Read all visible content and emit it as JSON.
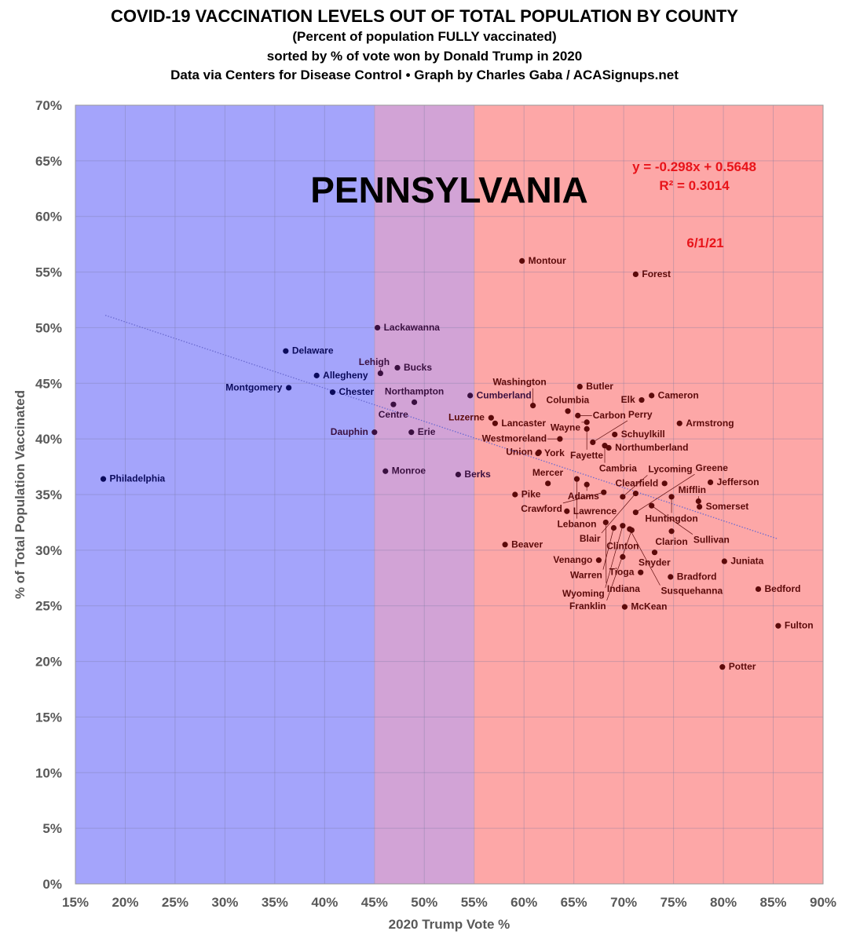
{
  "title": {
    "line1": "COVID-19 VACCINATION LEVELS OUT OF TOTAL POPULATION BY COUNTY",
    "line2": "(Percent of population FULLY vaccinated)",
    "line3": "sorted by % of vote won by Donald Trump in 2020",
    "line4": "Data via Centers for Disease Control • Graph by Charles Gaba / ACASignups.net"
  },
  "colors": {
    "blue_band": "#a4a4fb",
    "purple_band": "#d2a3d6",
    "red_band": "#fda7a7",
    "blue_dot": "#0b0b5c",
    "purple_dot": "#3a1040",
    "red_dot": "#5c0a0a",
    "annotation": "#e8141a"
  },
  "chart_data": {
    "type": "scatter",
    "state_label": "PENNSYLVANIA",
    "date_label": "6/1/21",
    "trendline": {
      "equation": "y = -0.298x + 0.5648",
      "r2": "R² = 0.3014",
      "slope": -0.298,
      "intercept": 0.5648,
      "x_range": [
        18,
        85.5
      ]
    },
    "xlabel": "2020 Trump Vote %",
    "ylabel": "% of Total Population Vaccinated",
    "xlim": [
      15,
      90
    ],
    "ylim": [
      0,
      70
    ],
    "xticks": [
      "15%",
      "20%",
      "25%",
      "30%",
      "35%",
      "40%",
      "45%",
      "50%",
      "55%",
      "60%",
      "65%",
      "70%",
      "75%",
      "80%",
      "85%",
      "90%"
    ],
    "yticks": [
      "0%",
      "5%",
      "10%",
      "15%",
      "20%",
      "25%",
      "30%",
      "35%",
      "40%",
      "45%",
      "50%",
      "55%",
      "60%",
      "65%",
      "70%"
    ],
    "bands": [
      {
        "from": 15,
        "to": 45,
        "party": "blue"
      },
      {
        "from": 45,
        "to": 55,
        "party": "purple"
      },
      {
        "from": 55,
        "to": 90,
        "party": "red"
      }
    ],
    "grid": true,
    "points": [
      {
        "name": "Philadelphia",
        "x": 17.8,
        "y": 36.4
      },
      {
        "name": "Delaware",
        "x": 36.1,
        "y": 47.9
      },
      {
        "name": "Allegheny",
        "x": 39.2,
        "y": 45.7
      },
      {
        "name": "Montgomery",
        "x": 36.4,
        "y": 44.6
      },
      {
        "name": "Chester",
        "x": 40.8,
        "y": 44.2
      },
      {
        "name": "Lackawanna",
        "x": 45.3,
        "y": 50.0
      },
      {
        "name": "Bucks",
        "x": 47.3,
        "y": 46.4
      },
      {
        "name": "Lehigh",
        "x": 45.6,
        "y": 45.9
      },
      {
        "name": "Centre",
        "x": 46.9,
        "y": 43.1
      },
      {
        "name": "Northampton",
        "x": 49.0,
        "y": 43.3
      },
      {
        "name": "Dauphin",
        "x": 45.0,
        "y": 40.6
      },
      {
        "name": "Erie",
        "x": 48.7,
        "y": 40.6
      },
      {
        "name": "Monroe",
        "x": 46.1,
        "y": 37.1
      },
      {
        "name": "Berks",
        "x": 53.4,
        "y": 36.8
      },
      {
        "name": "Cumberland",
        "x": 54.6,
        "y": 43.9
      },
      {
        "name": "Montour",
        "x": 59.8,
        "y": 56.0
      },
      {
        "name": "Forest",
        "x": 71.2,
        "y": 54.8
      },
      {
        "name": "Butler",
        "x": 65.6,
        "y": 44.7
      },
      {
        "name": "Cameron",
        "x": 72.8,
        "y": 43.9
      },
      {
        "name": "Elk",
        "x": 71.8,
        "y": 43.5
      },
      {
        "name": "Washington",
        "x": 60.9,
        "y": 43.0
      },
      {
        "name": "Luzerne",
        "x": 56.7,
        "y": 41.9
      },
      {
        "name": "Lancaster",
        "x": 57.1,
        "y": 41.4
      },
      {
        "name": "Columbia",
        "x": 64.4,
        "y": 42.5
      },
      {
        "name": "Carbon",
        "x": 65.4,
        "y": 42.1
      },
      {
        "name": "Wayne",
        "x": 66.3,
        "y": 41.5
      },
      {
        "name": "Fayette",
        "x": 66.3,
        "y": 40.9
      },
      {
        "name": "Armstrong",
        "x": 75.6,
        "y": 41.4
      },
      {
        "name": "Schuylkill",
        "x": 69.1,
        "y": 40.4
      },
      {
        "name": "Westmoreland",
        "x": 63.6,
        "y": 40.0
      },
      {
        "name": "Lycoming",
        "x": 69.9,
        "y": 34.8
      },
      {
        "name": "Cambria",
        "x": 68.1,
        "y": 39.4
      },
      {
        "name": "Northumberland",
        "x": 68.5,
        "y": 39.2
      },
      {
        "name": "Perry",
        "x": 66.9,
        "y": 39.7
      },
      {
        "name": "York",
        "x": 61.4,
        "y": 38.7
      },
      {
        "name": "Union",
        "x": 61.5,
        "y": 38.8
      },
      {
        "name": "Lebanon",
        "x": 65.3,
        "y": 36.4
      },
      {
        "name": "Mercer",
        "x": 62.4,
        "y": 36.0
      },
      {
        "name": "Adams",
        "x": 66.3,
        "y": 35.9
      },
      {
        "name": "Pike",
        "x": 59.1,
        "y": 35.0
      },
      {
        "name": "Crawford",
        "x": 68.0,
        "y": 35.2
      },
      {
        "name": "Blair",
        "x": 71.2,
        "y": 35.1
      },
      {
        "name": "Clearfield",
        "x": 74.1,
        "y": 36.0
      },
      {
        "name": "Jefferson",
        "x": 78.7,
        "y": 36.1
      },
      {
        "name": "Huntingdon",
        "x": 74.8,
        "y": 34.8
      },
      {
        "name": "Mifflin",
        "x": 77.5,
        "y": 34.4
      },
      {
        "name": "Somerset",
        "x": 77.6,
        "y": 33.9
      },
      {
        "name": "Greene",
        "x": 71.2,
        "y": 33.4
      },
      {
        "name": "Sullivan",
        "x": 72.8,
        "y": 34.0
      },
      {
        "name": "Lawrence",
        "x": 64.3,
        "y": 33.5
      },
      {
        "name": "Indiana",
        "x": 68.2,
        "y": 32.5
      },
      {
        "name": "Warren",
        "x": 69.0,
        "y": 32.0
      },
      {
        "name": "Wyoming",
        "x": 69.9,
        "y": 32.2
      },
      {
        "name": "Susquehanna",
        "x": 70.6,
        "y": 31.9
      },
      {
        "name": "Franklin",
        "x": 70.8,
        "y": 31.8
      },
      {
        "name": "Clarion",
        "x": 74.8,
        "y": 31.7
      },
      {
        "name": "Beaver",
        "x": 58.1,
        "y": 30.5
      },
      {
        "name": "Snyder",
        "x": 73.1,
        "y": 29.8
      },
      {
        "name": "Juniata",
        "x": 80.1,
        "y": 29.0
      },
      {
        "name": "Clinton",
        "x": 69.9,
        "y": 29.4
      },
      {
        "name": "Venango",
        "x": 67.5,
        "y": 29.1
      },
      {
        "name": "Tioga",
        "x": 71.7,
        "y": 28.0
      },
      {
        "name": "Bradford",
        "x": 74.7,
        "y": 27.6
      },
      {
        "name": "Bedford",
        "x": 83.5,
        "y": 26.5
      },
      {
        "name": "McKean",
        "x": 70.1,
        "y": 24.9
      },
      {
        "name": "Fulton",
        "x": 85.5,
        "y": 23.2
      },
      {
        "name": "Potter",
        "x": 79.9,
        "y": 19.5
      }
    ]
  }
}
